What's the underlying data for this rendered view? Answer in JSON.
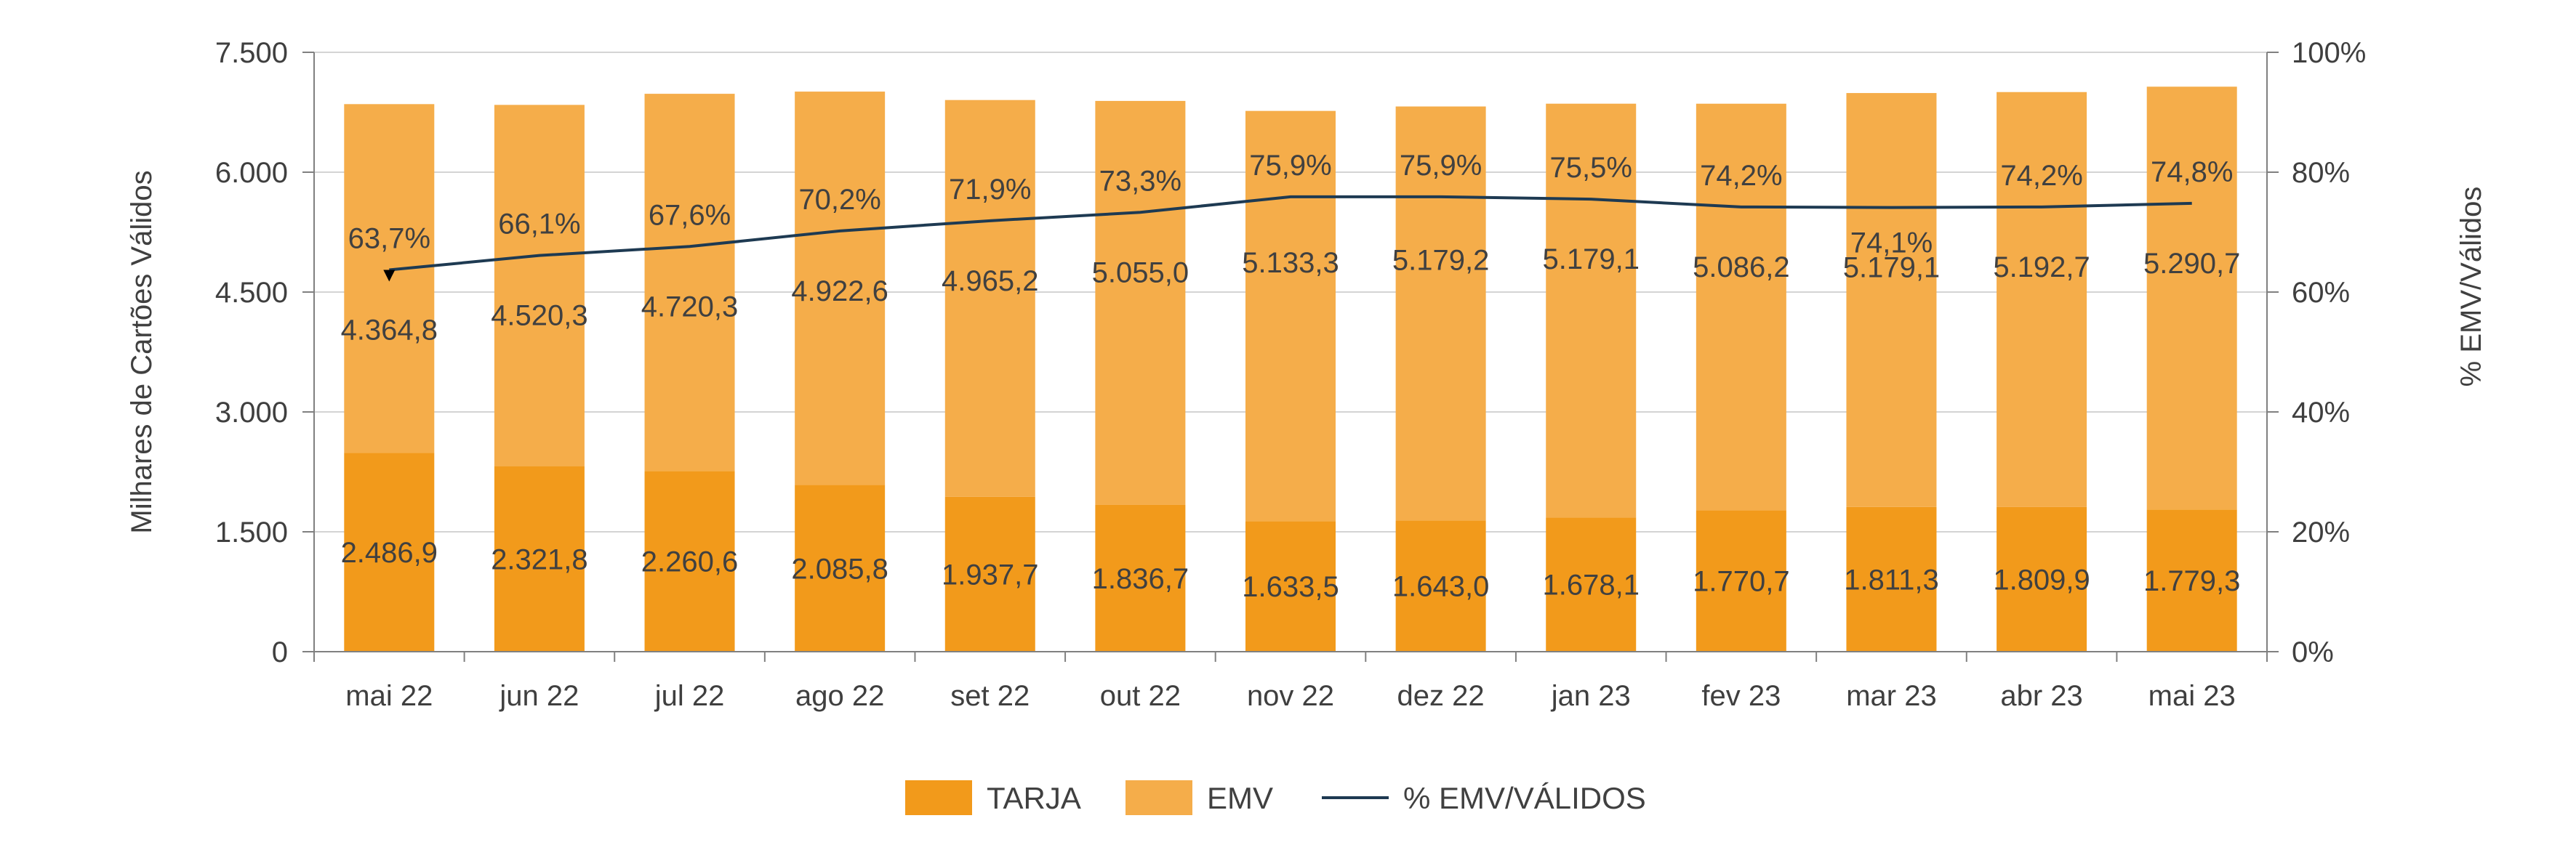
{
  "chart_data": {
    "type": "bar",
    "stacked": true,
    "categories": [
      "mai 22",
      "jun 22",
      "jul 22",
      "ago 22",
      "set 22",
      "out 22",
      "nov 22",
      "dez 22",
      "jan 23",
      "fev 23",
      "mar 23",
      "abr 23",
      "mai 23"
    ],
    "series": [
      {
        "name": "TARJA",
        "axis": "left",
        "kind": "bar",
        "color": "#f29a1b",
        "values": [
          2486.9,
          2321.8,
          2260.6,
          2085.8,
          1937.7,
          1836.7,
          1633.5,
          1643.0,
          1678.1,
          1770.7,
          1811.3,
          1809.9,
          1779.3
        ],
        "labels": [
          "2.486,9",
          "2.321,8",
          "2.260,6",
          "2.085,8",
          "1.937,7",
          "1.836,7",
          "1.633,5",
          "1.643,0",
          "1.678,1",
          "1.770,7",
          "1.811,3",
          "1.809,9",
          "1.779,3"
        ]
      },
      {
        "name": "EMV",
        "axis": "left",
        "kind": "bar",
        "color": "#f5ad4a",
        "values": [
          4364.8,
          4520.3,
          4720.3,
          4922.6,
          4965.2,
          5055.0,
          5133.3,
          5179.2,
          5179.1,
          5086.2,
          5179.1,
          5192.7,
          5290.7
        ],
        "labels": [
          "4.364,8",
          "4.520,3",
          "4.720,3",
          "4.922,6",
          "4.965,2",
          "5.055,0",
          "5.133,3",
          "5.179,2",
          "5.179,1",
          "5.086,2",
          "5.179,1",
          "5.192,7",
          "5.290,7"
        ]
      },
      {
        "name": "% EMV/VÁLIDOS",
        "axis": "right",
        "kind": "line",
        "color": "#1e3a52",
        "values": [
          63.7,
          66.1,
          67.6,
          70.2,
          71.9,
          73.3,
          75.9,
          75.9,
          75.5,
          74.2,
          74.1,
          74.2,
          74.8
        ],
        "labels": [
          "63,7%",
          "66,1%",
          "67,6%",
          "70,2%",
          "71,9%",
          "73,3%",
          "75,9%",
          "75,9%",
          "75,5%",
          "74,2%",
          "74,1%",
          "74,2%",
          "74,8%"
        ]
      }
    ],
    "ylabel": "Milhares de Cartões Válidos",
    "ylim": [
      0,
      7500
    ],
    "yticks": [
      "0",
      "1.500",
      "3.000",
      "4.500",
      "6.000",
      "7.500"
    ],
    "y2label": "% EMV/Válidos",
    "y2lim": [
      0,
      100
    ],
    "y2ticks": [
      "0%",
      "20%",
      "40%",
      "60%",
      "80%",
      "100%"
    ],
    "grid": true,
    "legend_position": "bottom-center"
  }
}
